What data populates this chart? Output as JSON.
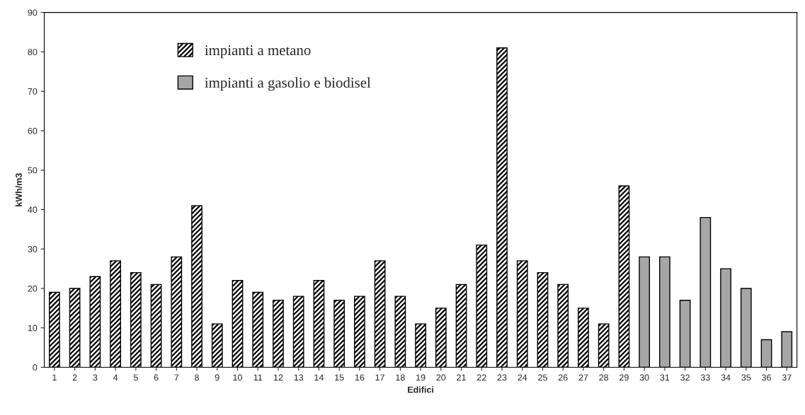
{
  "chart_data": {
    "type": "bar",
    "xlabel": "Edifici",
    "ylabel": "kWh/m3",
    "categories": [
      "1",
      "2",
      "3",
      "4",
      "5",
      "6",
      "7",
      "8",
      "9",
      "10",
      "11",
      "12",
      "13",
      "14",
      "15",
      "16",
      "17",
      "18",
      "19",
      "20",
      "21",
      "22",
      "23",
      "24",
      "25",
      "26",
      "27",
      "28",
      "29",
      "30",
      "31",
      "32",
      "33",
      "34",
      "35",
      "36",
      "37"
    ],
    "series": [
      {
        "name": "impianti a metano",
        "color": "#000000",
        "values": [
          19,
          20,
          23,
          27,
          24,
          21,
          28,
          41,
          11,
          22,
          19,
          17,
          18,
          22,
          17,
          18,
          27,
          18,
          11,
          15,
          21,
          31,
          81,
          27,
          24,
          21,
          15,
          11,
          46,
          null,
          null,
          null,
          null,
          null,
          null,
          null,
          null
        ]
      },
      {
        "name": "impianti a gasolio e biodisel",
        "color": "#a6a6a6",
        "values": [
          null,
          null,
          null,
          null,
          null,
          null,
          null,
          null,
          null,
          null,
          null,
          null,
          null,
          null,
          null,
          null,
          null,
          null,
          null,
          null,
          null,
          null,
          null,
          null,
          null,
          null,
          null,
          null,
          null,
          28,
          28,
          17,
          38,
          25,
          20,
          7,
          9
        ]
      }
    ],
    "ylim": [
      0,
      90
    ],
    "yticks": [
      0,
      10,
      20,
      30,
      40,
      50,
      60,
      70,
      80,
      90
    ],
    "grid": false,
    "legend": "top left"
  }
}
